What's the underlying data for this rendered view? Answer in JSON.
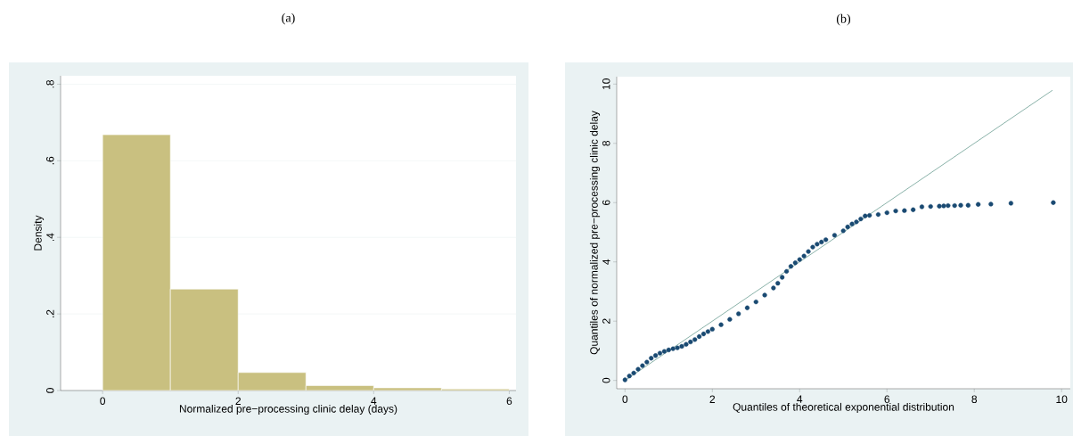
{
  "chart_data": [
    {
      "type": "histogram",
      "title": "(a)",
      "xlabel": "Normalized pre−processing clinic delay (days)",
      "ylabel": "Density",
      "color": "#c9c080",
      "bins": [
        0,
        1,
        2,
        3,
        4,
        5,
        6
      ],
      "values": [
        0.668,
        0.265,
        0.047,
        0.013,
        0.007,
        0.004
      ],
      "xlim": [
        -0.62,
        6.1
      ],
      "ylim": [
        0,
        0.822
      ],
      "xticks": [
        0,
        2,
        4,
        6
      ],
      "yticks": [
        0,
        {
          "value": 0.2,
          "label": ".2"
        },
        {
          "value": 0.4,
          "label": ".4"
        },
        {
          "value": 0.6,
          "label": ".6"
        },
        {
          "value": 0.8,
          "label": ".8"
        }
      ],
      "grid": "y"
    },
    {
      "type": "scatter",
      "title": "(b)",
      "xlabel": "Quantiles of theoretical exponential distribution",
      "ylabel": "Quantiles of normalized pre−processing clinic delay",
      "marker": "circle",
      "xlim": [
        -0.19,
        10.2
      ],
      "ylim": [
        -0.28,
        10.25
      ],
      "xticks": [
        0,
        2,
        4,
        6,
        8,
        10
      ],
      "yticks": [
        0,
        2,
        4,
        6,
        8,
        10
      ],
      "grid": false,
      "series": [
        {
          "type": "scatter",
          "color": "#1a4a72",
          "x": [
            0,
            0.1,
            0.2,
            0.3,
            0.4,
            0.5,
            0.6,
            0.7,
            0.8,
            0.9,
            1.0,
            1.1,
            1.2,
            1.3,
            1.4,
            1.5,
            1.6,
            1.7,
            1.8,
            1.9,
            2.0,
            2.2,
            2.4,
            2.6,
            2.8,
            3.0,
            3.2,
            3.4,
            3.5,
            3.6,
            3.7,
            3.8,
            3.9,
            4.0,
            4.1,
            4.2,
            4.3,
            4.4,
            4.5,
            4.6,
            4.8,
            5.0,
            5.1,
            5.2,
            5.3,
            5.4,
            5.5,
            5.6,
            5.8,
            6.0,
            6.2,
            6.4,
            6.6,
            6.8,
            7.0,
            7.2,
            7.3,
            7.4,
            7.55,
            7.69,
            7.86,
            8.09,
            8.38,
            8.84,
            9.81
          ],
          "values": [
            0.02,
            0.15,
            0.25,
            0.38,
            0.5,
            0.62,
            0.75,
            0.84,
            0.92,
            0.98,
            1.03,
            1.07,
            1.1,
            1.15,
            1.22,
            1.3,
            1.38,
            1.48,
            1.57,
            1.65,
            1.73,
            1.88,
            2.06,
            2.25,
            2.45,
            2.65,
            2.88,
            3.12,
            3.28,
            3.48,
            3.68,
            3.85,
            3.97,
            4.08,
            4.2,
            4.35,
            4.5,
            4.6,
            4.67,
            4.75,
            4.9,
            5.05,
            5.18,
            5.28,
            5.35,
            5.45,
            5.55,
            5.57,
            5.6,
            5.66,
            5.72,
            5.73,
            5.76,
            5.86,
            5.87,
            5.88,
            5.89,
            5.9,
            5.9,
            5.91,
            5.91,
            5.94,
            5.95,
            5.98,
            6.0
          ]
        },
        {
          "type": "line",
          "color": "#3a7d6e",
          "marker": "none",
          "x": [
            0,
            9.79
          ],
          "values": [
            0,
            9.79
          ]
        }
      ]
    }
  ]
}
